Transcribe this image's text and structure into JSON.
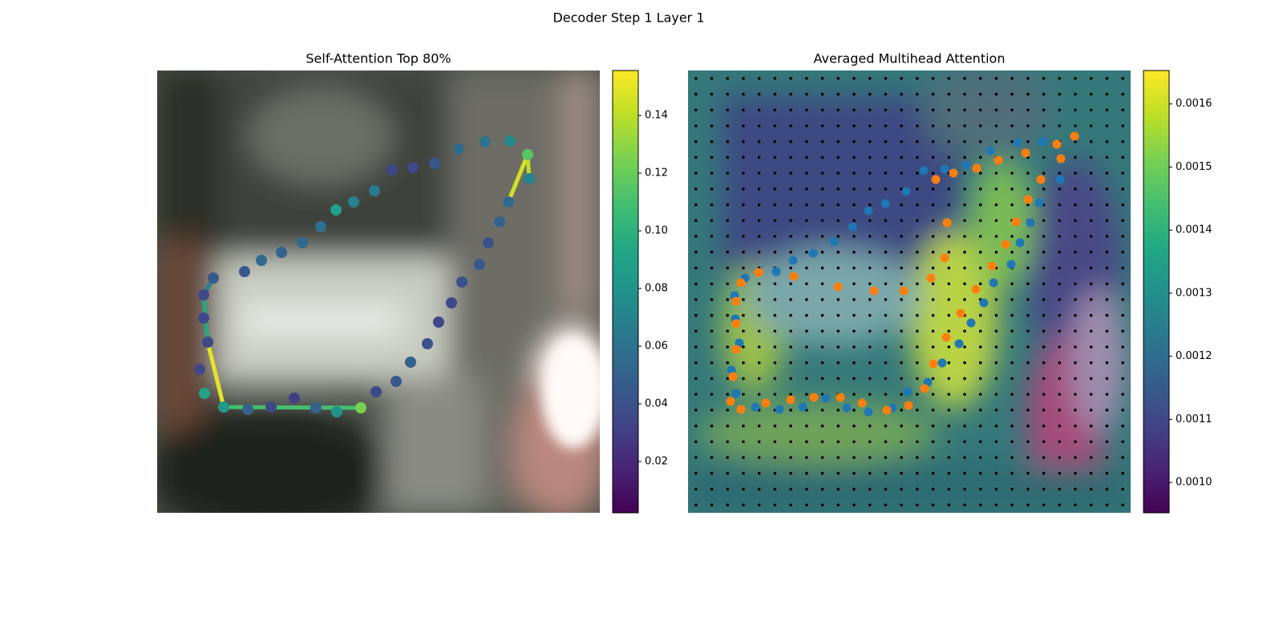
{
  "title": "Decoder Step 1 Layer 1",
  "chart_data": [
    {
      "type": "scatter",
      "title": "Self-Attention Top 80%",
      "colormap": "viridis",
      "xlim": [
        0,
        552
      ],
      "ylim": [
        552,
        0
      ],
      "clim": [
        0.0022,
        0.1556
      ],
      "cticks": [
        0.02,
        0.04,
        0.06,
        0.08,
        {
          "value": 0.1,
          "label": "0.10"
        },
        0.12,
        0.14
      ],
      "x": [
        70,
        109,
        130,
        155,
        181,
        204,
        223,
        245,
        271,
        293,
        319,
        346,
        376,
        409,
        440,
        462,
        464,
        438,
        427,
        413,
        402,
        380,
        367,
        351,
        337,
        316,
        298,
        273,
        254,
        224,
        198,
        171,
        142,
        113,
        83,
        59,
        53,
        63,
        58,
        58
      ],
      "y": [
        259,
        251,
        237,
        227,
        215,
        195,
        174,
        164,
        150,
        124,
        121,
        116,
        98,
        89,
        88,
        105,
        135,
        164,
        189,
        215,
        242,
        264,
        290,
        314,
        341,
        364,
        388,
        401,
        421,
        426,
        421,
        409,
        420,
        423,
        420,
        403,
        373,
        339,
        309,
        280
      ],
      "values": [
        0.045,
        0.045,
        0.055,
        0.05,
        0.055,
        0.06,
        0.09,
        0.07,
        0.065,
        0.035,
        0.035,
        0.045,
        0.055,
        0.06,
        0.075,
        0.115,
        0.07,
        0.055,
        0.05,
        0.04,
        0.045,
        0.04,
        0.035,
        0.035,
        0.04,
        0.05,
        0.045,
        0.035,
        0.125,
        0.08,
        0.05,
        0.03,
        0.035,
        0.05,
        0.085,
        0.09,
        0.035,
        0.035,
        0.035,
        0.035
      ],
      "lines": [
        {
          "x": [
            70,
            58
          ],
          "y": [
            259,
            280
          ],
          "value": 0.07
        },
        {
          "x": [
            58,
            63
          ],
          "y": [
            280,
            339
          ],
          "value": 0.095
        },
        {
          "x": [
            83,
            254
          ],
          "y": [
            420,
            421
          ],
          "value": 0.11
        },
        {
          "x": [
            462,
            464
          ],
          "y": [
            105,
            135
          ],
          "value": 0.14
        },
        {
          "x": [
            63,
            83
          ],
          "y": [
            339,
            420
          ],
          "value": 0.15
        },
        {
          "x": [
            462,
            438
          ],
          "y": [
            105,
            164
          ],
          "value": 0.145
        }
      ]
    },
    {
      "type": "heatmap-scatter",
      "title": "Averaged Multihead Attention",
      "colormap": "viridis",
      "xlim": [
        0,
        552
      ],
      "ylim": [
        552,
        0
      ],
      "clim": [
        0.000952,
        0.001653
      ],
      "cticks": [
        {
          "value": 0.001,
          "label": "0.0010"
        },
        0.0011,
        0.0012,
        0.0013,
        0.0014,
        0.0015,
        0.0016
      ],
      "series": [
        {
          "color": "#1f77b4",
          "x": [
            58,
            71,
            110,
            131,
            156,
            182,
            205,
            225,
            246,
            272,
            294,
            320,
            347,
            377,
            411,
            442,
            464,
            438,
            427,
            414,
            403,
            381,
            369,
            353,
            338,
            317,
            299,
            274,
            255,
            225,
            198,
            172,
            143,
            114,
            84,
            60,
            54,
            64,
            59
          ],
          "y": [
            281,
            259,
            251,
            237,
            228,
            214,
            195,
            175,
            166,
            151,
            125,
            123,
            118,
            100,
            90,
            89,
            136,
            165,
            190,
            215,
            242,
            265,
            290,
            315,
            341,
            365,
            389,
            401,
            421,
            426,
            421,
            409,
            420,
            423,
            420,
            403,
            374,
            340,
            310
          ]
        },
        {
          "color": "#ff7f0e",
          "x": [
            482,
            460,
            465,
            421,
            387,
            360,
            331,
            309,
            323,
            440,
            424,
            409,
            396,
            379,
            359,
            340,
            322,
            306,
            295,
            275,
            248,
            217,
            190,
            157,
            128,
            97,
            66,
            53,
            56,
            60,
            60,
            60,
            66,
            88,
            132,
            187,
            232,
            269,
            303,
            320
          ],
          "y": [
            82,
            92,
            110,
            103,
            112,
            122,
            128,
            136,
            190,
            136,
            161,
            189,
            217,
            244,
            273,
            303,
            333,
            366,
            397,
            418,
            424,
            415,
            408,
            408,
            411,
            415,
            423,
            413,
            382,
            348,
            316,
            288,
            265,
            252,
            257,
            270,
            275,
            275,
            259,
            234
          ]
        }
      ]
    }
  ]
}
